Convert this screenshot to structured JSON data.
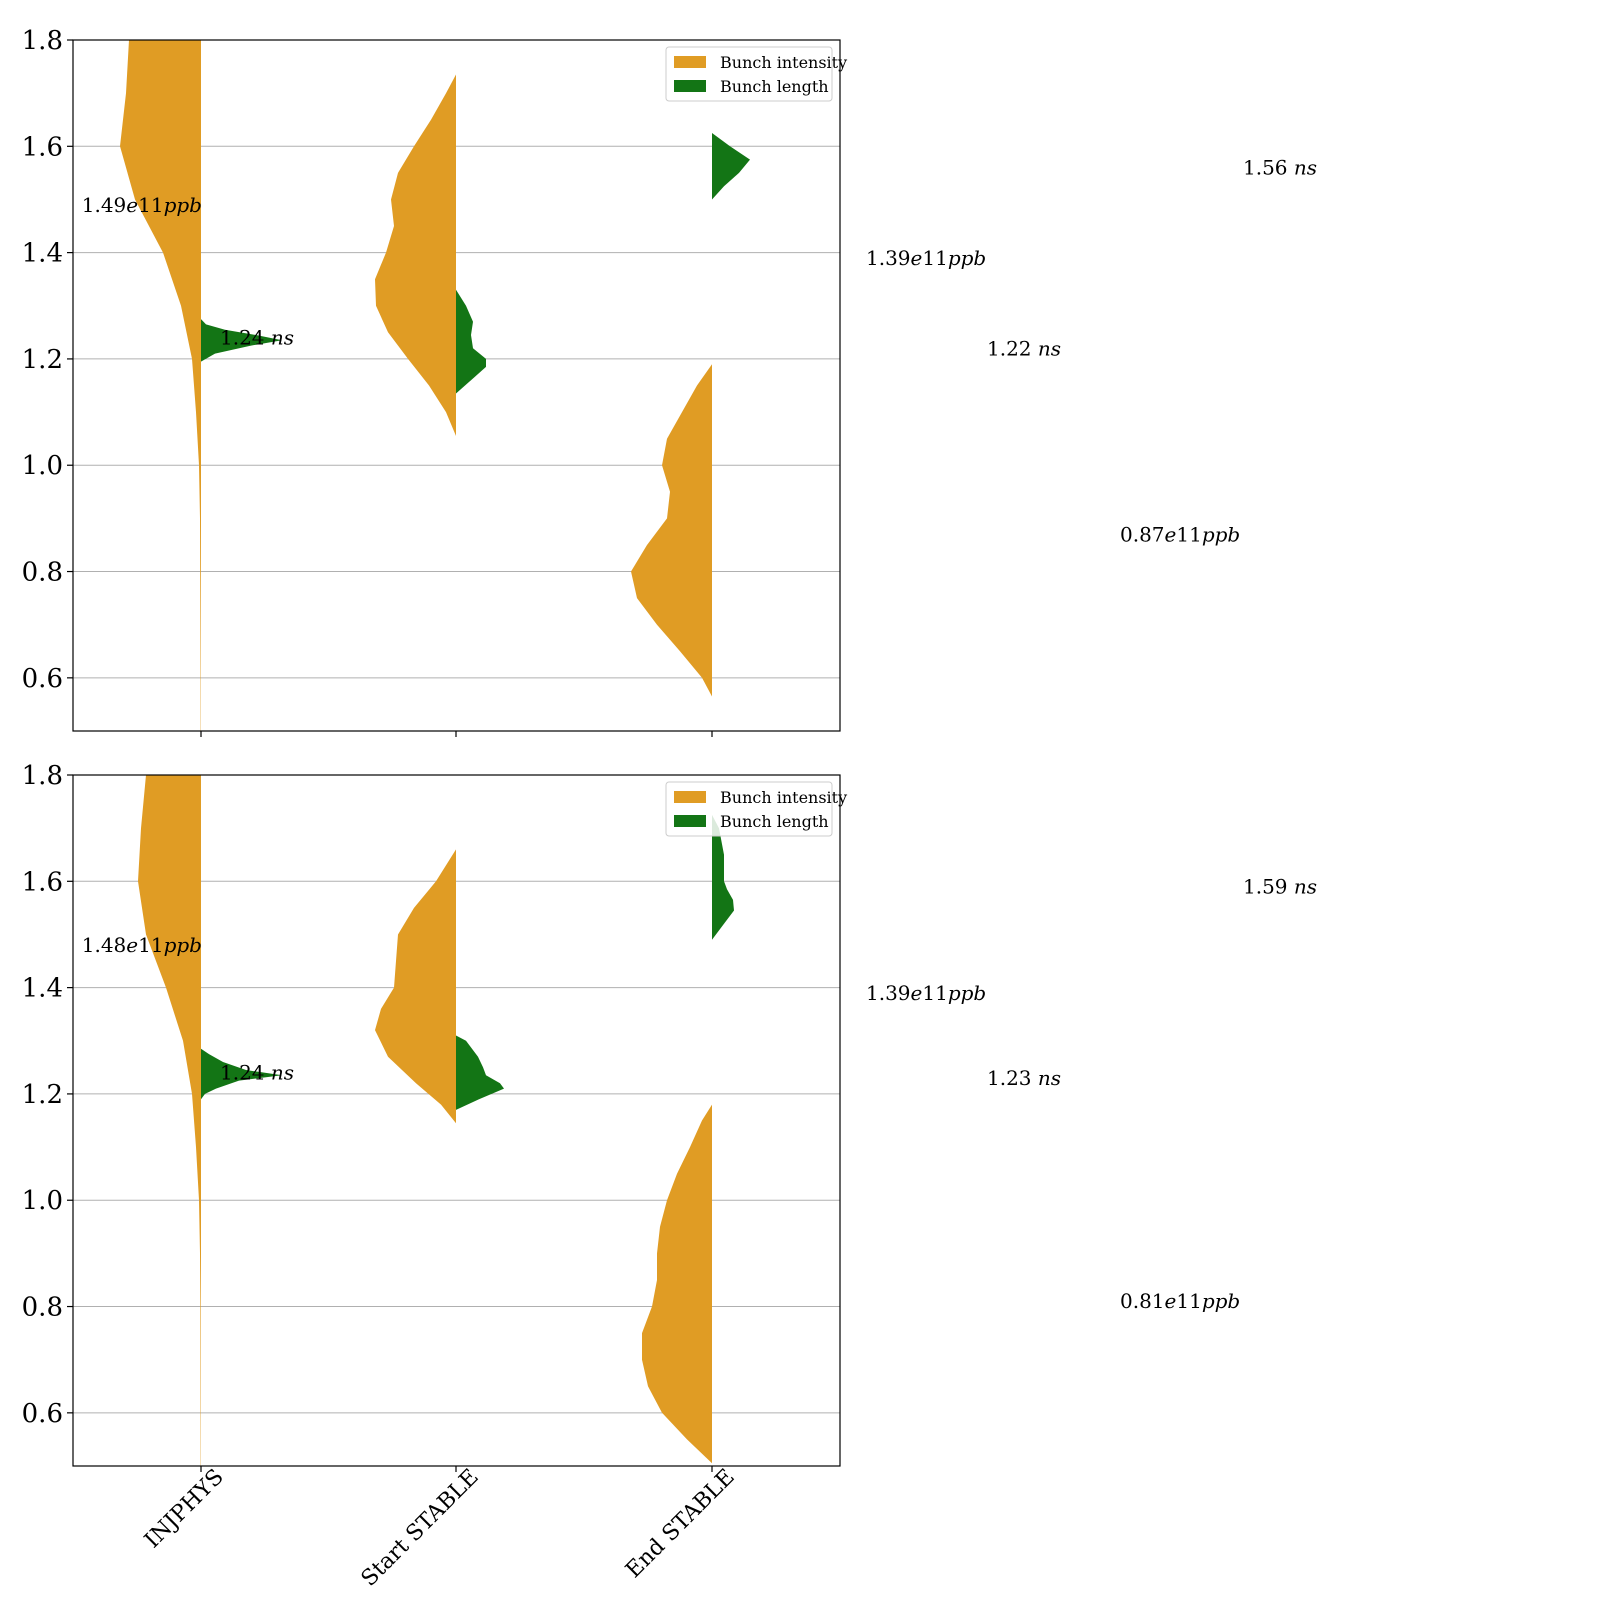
{
  "colors": {
    "intensity": "#e09c24",
    "length": "#137515"
  },
  "chart_data": [
    {
      "type": "violin",
      "categories": [
        "INJPHYS",
        "Start STABLE",
        "End STABLE"
      ],
      "ylim": [
        0.5,
        1.8
      ],
      "yticks": [
        "0.6",
        "0.8",
        "1.0",
        "1.2",
        "1.4",
        "1.6",
        "1.8"
      ],
      "grid": true,
      "legend": {
        "placement": "top-right",
        "entries": [
          "Bunch intensity",
          "Bunch length"
        ]
      },
      "series": [
        {
          "name": "Bunch intensity",
          "side": "left",
          "violins": [
            {
              "profile": [
                [
                  0.5,
                  0.003
                ],
                [
                  0.6,
                  0.004
                ],
                [
                  0.8,
                  0.008
                ],
                [
                  0.9,
                  0.01
                ],
                [
                  1.0,
                  0.02
                ],
                [
                  1.1,
                  0.05
                ],
                [
                  1.2,
                  0.09
                ],
                [
                  1.3,
                  0.2
                ],
                [
                  1.4,
                  0.38
                ],
                [
                  1.5,
                  0.66
                ],
                [
                  1.6,
                  0.81
                ],
                [
                  1.7,
                  0.75
                ],
                [
                  1.8,
                  0.72
                ]
              ]
            },
            {
              "profile": [
                [
                  1.055,
                  0.0
                ],
                [
                  1.1,
                  0.1
                ],
                [
                  1.15,
                  0.27
                ],
                [
                  1.2,
                  0.48
                ],
                [
                  1.25,
                  0.68
                ],
                [
                  1.3,
                  0.8
                ],
                [
                  1.35,
                  0.81
                ],
                [
                  1.4,
                  0.7
                ],
                [
                  1.45,
                  0.62
                ],
                [
                  1.5,
                  0.65
                ],
                [
                  1.55,
                  0.58
                ],
                [
                  1.6,
                  0.42
                ],
                [
                  1.65,
                  0.25
                ],
                [
                  1.7,
                  0.1
                ],
                [
                  1.735,
                  0.0
                ]
              ]
            },
            {
              "profile": [
                [
                  0.565,
                  0.0
                ],
                [
                  0.6,
                  0.1
                ],
                [
                  0.65,
                  0.32
                ],
                [
                  0.7,
                  0.55
                ],
                [
                  0.75,
                  0.75
                ],
                [
                  0.8,
                  0.81
                ],
                [
                  0.85,
                  0.65
                ],
                [
                  0.9,
                  0.45
                ],
                [
                  0.95,
                  0.42
                ],
                [
                  1.0,
                  0.5
                ],
                [
                  1.05,
                  0.45
                ],
                [
                  1.1,
                  0.3
                ],
                [
                  1.15,
                  0.15
                ],
                [
                  1.19,
                  0.0
                ]
              ]
            }
          ]
        },
        {
          "name": "Bunch length",
          "side": "right",
          "violins": [
            {
              "profile": [
                [
                  1.195,
                  0.0
                ],
                [
                  1.21,
                  0.14
                ],
                [
                  1.225,
                  0.5
                ],
                [
                  1.235,
                  0.81
                ],
                [
                  1.245,
                  0.55
                ],
                [
                  1.255,
                  0.24
                ],
                [
                  1.265,
                  0.05
                ],
                [
                  1.275,
                  0.0
                ]
              ]
            },
            {
              "profile": [
                [
                  1.135,
                  0.0
                ],
                [
                  1.16,
                  0.15
                ],
                [
                  1.185,
                  0.3
                ],
                [
                  1.2,
                  0.3
                ],
                [
                  1.22,
                  0.17
                ],
                [
                  1.245,
                  0.15
                ],
                [
                  1.27,
                  0.17
                ],
                [
                  1.3,
                  0.1
                ],
                [
                  1.33,
                  0.0
                ]
              ]
            },
            {
              "profile": [
                [
                  1.5,
                  0.0
                ],
                [
                  1.525,
                  0.12
                ],
                [
                  1.55,
                  0.27
                ],
                [
                  1.575,
                  0.38
                ],
                [
                  1.6,
                  0.18
                ],
                [
                  1.625,
                  0.0
                ]
              ]
            }
          ]
        }
      ],
      "annotations": [
        {
          "num": "1.49",
          "mid": "e11",
          "unit": "ppb",
          "y": 1.49,
          "anchor": "end"
        },
        {
          "num": "1.24 ",
          "mid": "",
          "unit": "ns",
          "y": 1.24,
          "anchor": "start"
        },
        {
          "num": "1.39",
          "mid": "e11",
          "unit": "ppb",
          "y": 1.39,
          "anchor": "start"
        },
        {
          "num": "1.22 ",
          "mid": "",
          "unit": "ns",
          "y": 1.22,
          "anchor": "start"
        },
        {
          "num": "0.87",
          "mid": "e11",
          "unit": "ppb",
          "y": 0.87,
          "anchor": "start"
        },
        {
          "num": "1.56 ",
          "mid": "",
          "unit": "ns",
          "y": 1.56,
          "anchor": "start"
        }
      ]
    },
    {
      "type": "violin",
      "categories": [
        "INJPHYS",
        "Start STABLE",
        "End STABLE"
      ],
      "ylim": [
        0.5,
        1.8
      ],
      "yticks": [
        "0.6",
        "0.8",
        "1.0",
        "1.2",
        "1.4",
        "1.6",
        "1.8"
      ],
      "grid": true,
      "legend": {
        "placement": "top-right",
        "entries": [
          "Bunch intensity",
          "Bunch length"
        ]
      },
      "series": [
        {
          "name": "Bunch intensity",
          "side": "left",
          "violins": [
            {
              "profile": [
                [
                  0.5,
                  0.003
                ],
                [
                  0.6,
                  0.004
                ],
                [
                  0.8,
                  0.006
                ],
                [
                  0.9,
                  0.01
                ],
                [
                  1.0,
                  0.02
                ],
                [
                  1.1,
                  0.05
                ],
                [
                  1.2,
                  0.09
                ],
                [
                  1.3,
                  0.18
                ],
                [
                  1.4,
                  0.35
                ],
                [
                  1.5,
                  0.55
                ],
                [
                  1.6,
                  0.63
                ],
                [
                  1.7,
                  0.6
                ],
                [
                  1.8,
                  0.55
                ]
              ]
            },
            {
              "profile": [
                [
                  1.145,
                  0.0
                ],
                [
                  1.18,
                  0.15
                ],
                [
                  1.22,
                  0.4
                ],
                [
                  1.27,
                  0.68
                ],
                [
                  1.32,
                  0.81
                ],
                [
                  1.36,
                  0.75
                ],
                [
                  1.4,
                  0.62
                ],
                [
                  1.45,
                  0.6
                ],
                [
                  1.5,
                  0.58
                ],
                [
                  1.55,
                  0.42
                ],
                [
                  1.6,
                  0.2
                ],
                [
                  1.66,
                  0.0
                ]
              ]
            },
            {
              "profile": [
                [
                  0.505,
                  0.0
                ],
                [
                  0.55,
                  0.25
                ],
                [
                  0.6,
                  0.5
                ],
                [
                  0.65,
                  0.64
                ],
                [
                  0.7,
                  0.7
                ],
                [
                  0.75,
                  0.7
                ],
                [
                  0.8,
                  0.6
                ],
                [
                  0.85,
                  0.55
                ],
                [
                  0.9,
                  0.55
                ],
                [
                  0.95,
                  0.52
                ],
                [
                  1.0,
                  0.45
                ],
                [
                  1.05,
                  0.35
                ],
                [
                  1.1,
                  0.22
                ],
                [
                  1.15,
                  0.1
                ],
                [
                  1.18,
                  0.0
                ]
              ]
            }
          ]
        },
        {
          "name": "Bunch length",
          "side": "right",
          "violins": [
            {
              "profile": [
                [
                  1.19,
                  0.0
                ],
                [
                  1.2,
                  0.04
                ],
                [
                  1.21,
                  0.15
                ],
                [
                  1.225,
                  0.38
                ],
                [
                  1.235,
                  0.81
                ],
                [
                  1.245,
                  0.45
                ],
                [
                  1.26,
                  0.22
                ],
                [
                  1.275,
                  0.08
                ],
                [
                  1.285,
                  0.0
                ]
              ]
            },
            {
              "profile": [
                [
                  1.17,
                  0.0
                ],
                [
                  1.19,
                  0.23
                ],
                [
                  1.21,
                  0.48
                ],
                [
                  1.22,
                  0.44
                ],
                [
                  1.235,
                  0.3
                ],
                [
                  1.25,
                  0.27
                ],
                [
                  1.27,
                  0.22
                ],
                [
                  1.3,
                  0.1
                ],
                [
                  1.31,
                  0.0
                ]
              ]
            },
            {
              "profile": [
                [
                  1.49,
                  0.0
                ],
                [
                  1.52,
                  0.12
                ],
                [
                  1.545,
                  0.22
                ],
                [
                  1.565,
                  0.21
                ],
                [
                  1.585,
                  0.15
                ],
                [
                  1.6,
                  0.12
                ],
                [
                  1.65,
                  0.12
                ],
                [
                  1.7,
                  0.07
                ],
                [
                  1.725,
                  0.0
                ]
              ]
            }
          ]
        }
      ],
      "annotations": [
        {
          "num": "1.48",
          "mid": "e11",
          "unit": "ppb",
          "y": 1.48,
          "anchor": "end"
        },
        {
          "num": "1.24 ",
          "mid": "",
          "unit": "ns",
          "y": 1.24,
          "anchor": "start"
        },
        {
          "num": "1.39",
          "mid": "e11",
          "unit": "ppb",
          "y": 1.39,
          "anchor": "start"
        },
        {
          "num": "1.23 ",
          "mid": "",
          "unit": "ns",
          "y": 1.23,
          "anchor": "start"
        },
        {
          "num": "0.81",
          "mid": "e11",
          "unit": "ppb",
          "y": 0.81,
          "anchor": "start"
        },
        {
          "num": "1.59 ",
          "mid": "",
          "unit": "ns",
          "y": 1.59,
          "anchor": "start"
        }
      ]
    }
  ]
}
